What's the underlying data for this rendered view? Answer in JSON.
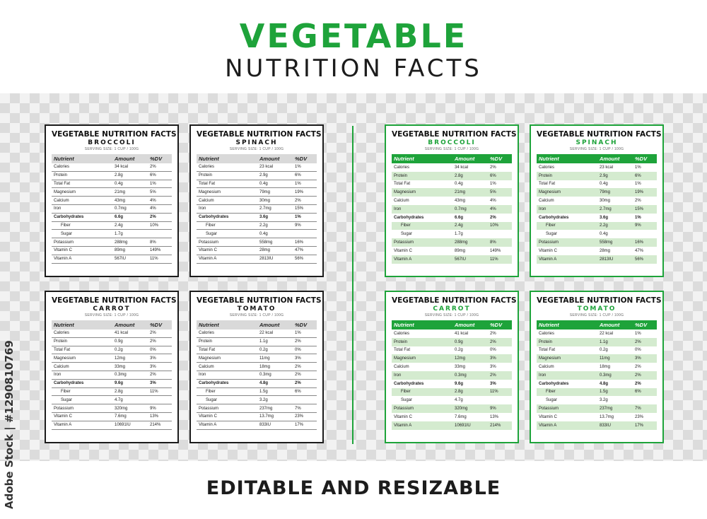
{
  "title": "VEGETABLE",
  "subtitle": "NUTRITION FACTS",
  "footer": "EDITABLE AND RESIZABLE",
  "stock_id": "Adobe Stock | #1290810769",
  "card_header": "VEGETABLE NUTRITION FACTS",
  "serving": "SERVING SIZE: 1 CUP / 100G",
  "columns": [
    "Nutrient",
    "Amount",
    "%DV"
  ],
  "colors": {
    "green": "#1ea33a",
    "light_green": "#d4ebcf",
    "dark": "#1c1c1c"
  },
  "cards": [
    {
      "name": "BROCCOLI",
      "rows": [
        [
          "Calories",
          "34 kcal",
          "2%"
        ],
        [
          "Protein",
          "2.8g",
          "6%"
        ],
        [
          "Total Fat",
          "0.4g",
          "1%"
        ],
        [
          "Magnesium",
          "21mg",
          "5%"
        ],
        [
          "Calcium",
          "43mg",
          "4%"
        ],
        [
          "Iron",
          "0.7mg",
          "4%"
        ],
        [
          "Carbohydrates",
          "6.6g",
          "2%"
        ],
        [
          "Fiber",
          "2.4g",
          "10%"
        ],
        [
          "Sugar",
          "1.7g",
          ""
        ],
        [
          "Potassium",
          "288mg",
          "8%"
        ],
        [
          "Vitamin C",
          "89mg",
          "149%"
        ],
        [
          "Vitamin A",
          "567IU",
          "11%"
        ]
      ]
    },
    {
      "name": "SPINACH",
      "rows": [
        [
          "Calories",
          "23 kcal",
          "1%"
        ],
        [
          "Protein",
          "2.9g",
          "6%"
        ],
        [
          "Total Fat",
          "0.4g",
          "1%"
        ],
        [
          "Magnesium",
          "79mg",
          "19%"
        ],
        [
          "Calcium",
          "30mg",
          "2%"
        ],
        [
          "Iron",
          "2.7mg",
          "15%"
        ],
        [
          "Carbohydrates",
          "3.6g",
          "1%"
        ],
        [
          "Fiber",
          "2.2g",
          "9%"
        ],
        [
          "Sugar",
          "0.4g",
          ""
        ],
        [
          "Potassium",
          "558mg",
          "16%"
        ],
        [
          "Vitamin C",
          "28mg",
          "47%"
        ],
        [
          "Vitamin A",
          "2813IU",
          "56%"
        ]
      ]
    },
    {
      "name": "CARROT",
      "rows": [
        [
          "Calories",
          "41 kcal",
          "2%"
        ],
        [
          "Protein",
          "0.9g",
          "2%"
        ],
        [
          "Total Fat",
          "0.2g",
          "0%"
        ],
        [
          "Magnesium",
          "12mg",
          "3%"
        ],
        [
          "Calcium",
          "33mg",
          "3%"
        ],
        [
          "Iron",
          "0.3mg",
          "2%"
        ],
        [
          "Carbohydrates",
          "9.6g",
          "3%"
        ],
        [
          "Fiber",
          "2.8g",
          "11%"
        ],
        [
          "Sugar",
          "4.7g",
          ""
        ],
        [
          "Potassium",
          "320mg",
          "9%"
        ],
        [
          "Vitamin C",
          "7.6mg",
          "13%"
        ],
        [
          "Vitamin A",
          "10691IU",
          "214%"
        ]
      ]
    },
    {
      "name": "TOMATO",
      "rows": [
        [
          "Calories",
          "22 kcal",
          "1%"
        ],
        [
          "Protein",
          "1.1g",
          "2%"
        ],
        [
          "Total Fat",
          "0.2g",
          "0%"
        ],
        [
          "Magnesium",
          "11mg",
          "3%"
        ],
        [
          "Calcium",
          "18mg",
          "2%"
        ],
        [
          "Iron",
          "0.3mg",
          "2%"
        ],
        [
          "Carbohydrates",
          "4.8g",
          "2%"
        ],
        [
          "Fiber",
          "1.5g",
          "6%"
        ],
        [
          "Sugar",
          "3.2g",
          ""
        ],
        [
          "Potassium",
          "237mg",
          "7%"
        ],
        [
          "Vitamin C",
          "13.7mg",
          "23%"
        ],
        [
          "Vitamin A",
          "833IU",
          "17%"
        ]
      ]
    }
  ]
}
